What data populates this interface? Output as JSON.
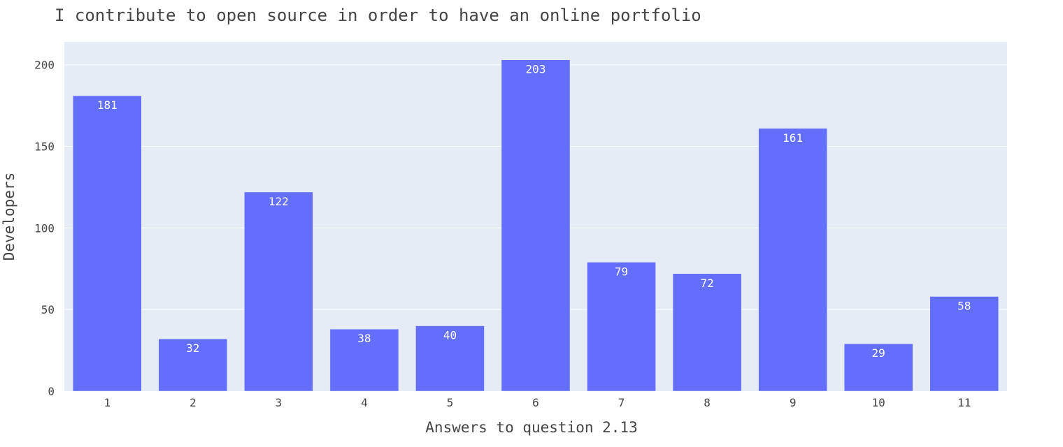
{
  "chart_data": {
    "type": "bar",
    "title": "I contribute to open source in order to have an online portfolio",
    "xlabel": "Answers to question 2.13",
    "ylabel": "Developers",
    "categories": [
      "1",
      "2",
      "3",
      "4",
      "5",
      "6",
      "7",
      "8",
      "9",
      "10",
      "11"
    ],
    "values": [
      181,
      32,
      122,
      38,
      40,
      203,
      79,
      72,
      161,
      29,
      58
    ],
    "data_labels": [
      "181",
      "32",
      "122",
      "38",
      "40",
      "203",
      "79",
      "72",
      "161",
      "29",
      "58"
    ],
    "ylim": [
      0,
      214
    ],
    "yticks": [
      0,
      50,
      100,
      150,
      200
    ],
    "ytick_labels": [
      "0",
      "50",
      "100",
      "150",
      "200"
    ],
    "grid": true,
    "legend": false,
    "colors": {
      "bar": "#636efa",
      "plot_background": "#e5ecf6",
      "gridline": "#ffffff",
      "text": "#444444",
      "data_label": "#ffffff"
    }
  }
}
